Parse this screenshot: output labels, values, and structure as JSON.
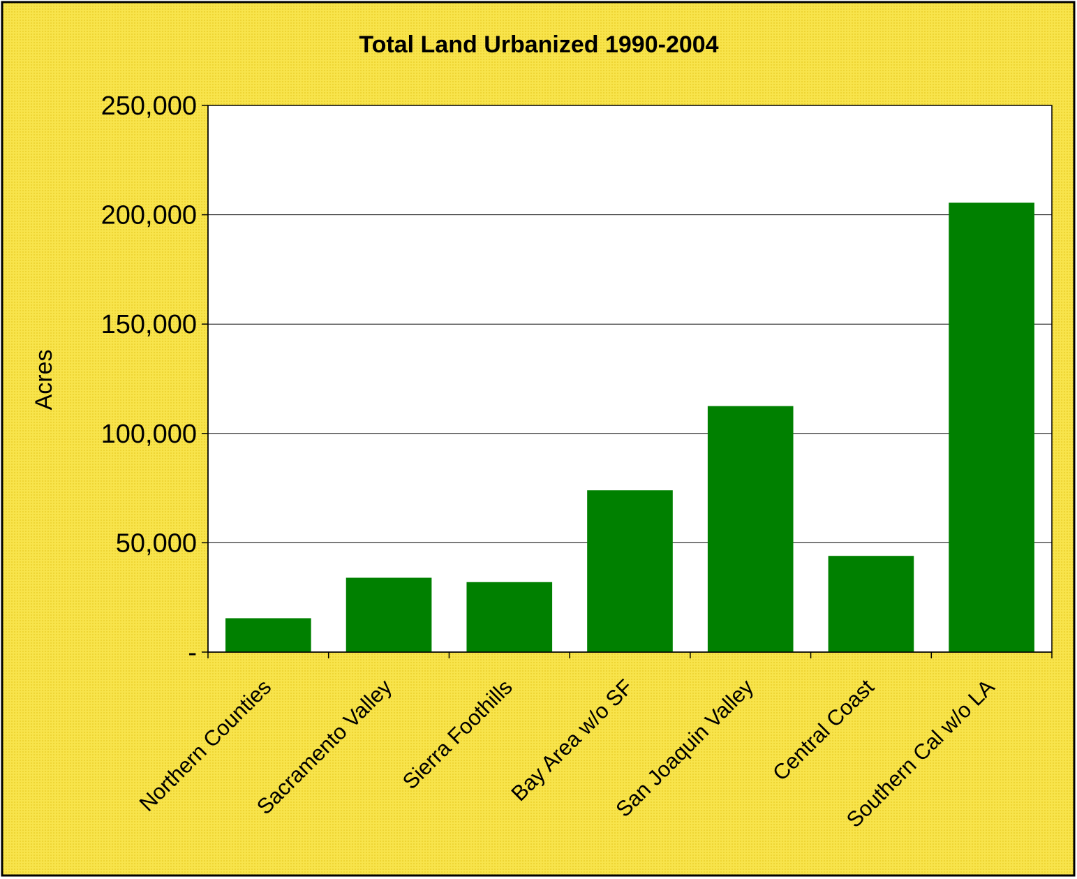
{
  "colors": {
    "chart_background": "#F8E44C",
    "chart_background_dot": "#EED534",
    "plot_background": "#FFFFFF",
    "bar_fill": "#008000",
    "axis_line": "#000000",
    "gridline": "#000000",
    "border": "#000000"
  },
  "chart_data": {
    "type": "bar",
    "title": "Total Land Urbanized 1990-2004",
    "xlabel": "",
    "ylabel": "Acres",
    "ylim": [
      0,
      250000
    ],
    "yticks": [
      0,
      50000,
      100000,
      150000,
      200000,
      250000
    ],
    "ytick_labels": [
      "-",
      "50,000",
      "100,000",
      "150,000",
      "200,000",
      "250,000"
    ],
    "grid": true,
    "legend": "none",
    "categories": [
      "Northern Counties",
      "Sacramento Valley",
      "Sierra Foothills",
      "Bay Area w/o SF",
      "San Joaquin Valley",
      "Central Coast",
      "Southern Cal w/o LA"
    ],
    "series": [
      {
        "color": "#008000",
        "values": [
          15500,
          34000,
          32000,
          74000,
          112500,
          44000,
          205500
        ]
      }
    ]
  }
}
